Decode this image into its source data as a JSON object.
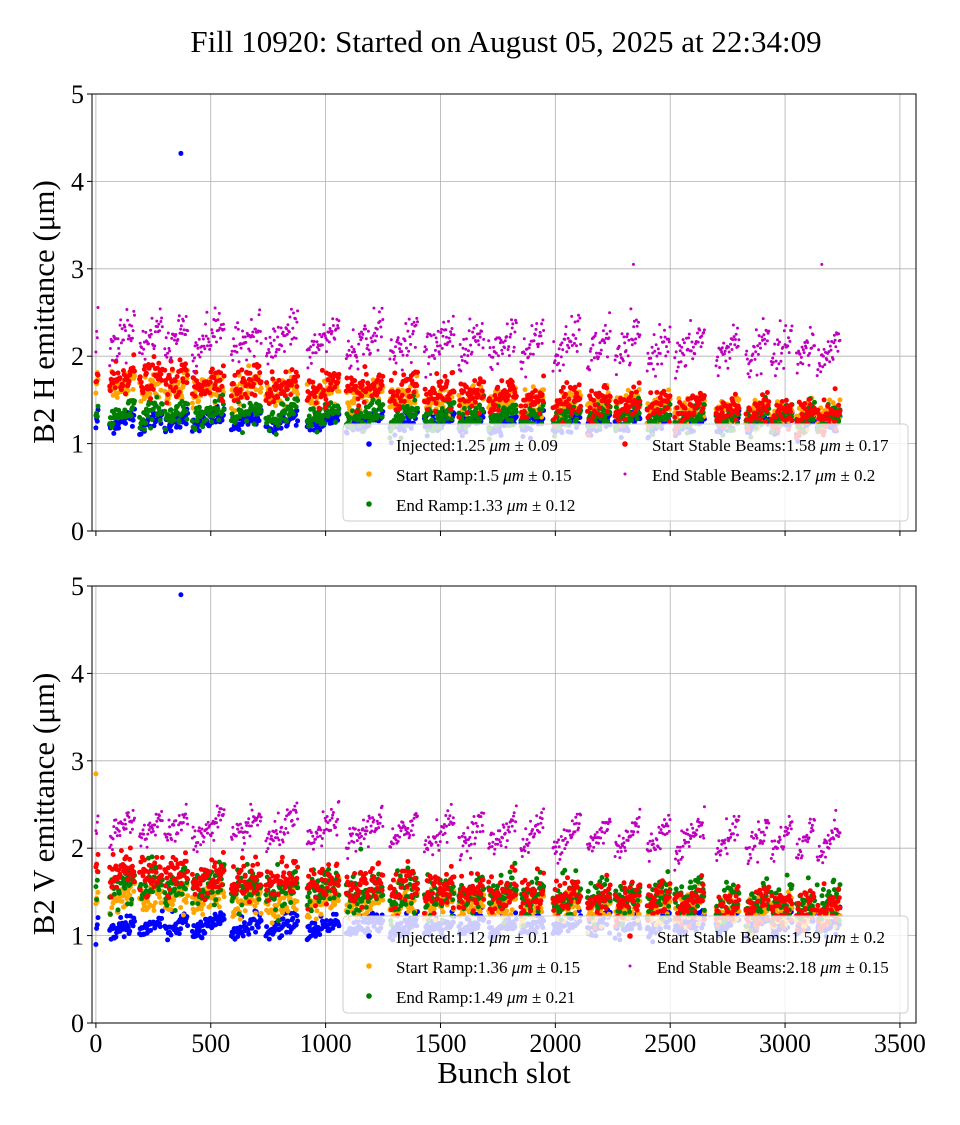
{
  "chart_data": [
    {
      "type": "scatter",
      "title": "Fill 10920: Started on August 05, 2025 at 22:34:09",
      "xlabel": "",
      "ylabel": "B2 H emittance (μm)",
      "xlim": [
        -17,
        3570
      ],
      "ylim": [
        0,
        5
      ],
      "xticks": [
        0,
        500,
        1000,
        1500,
        2000,
        2500,
        3000,
        3500
      ],
      "yticks": [
        0,
        1,
        2,
        3,
        4,
        5
      ],
      "grid": true,
      "legend_placement": "lower-right",
      "bunch_trains": [
        [
          0,
          10
        ],
        [
          60,
          170
        ],
        [
          190,
          290
        ],
        [
          300,
          400
        ],
        [
          420,
          560
        ],
        [
          590,
          720
        ],
        [
          740,
          880
        ],
        [
          920,
          1060
        ],
        [
          1090,
          1250
        ],
        [
          1280,
          1400
        ],
        [
          1430,
          1560
        ],
        [
          1580,
          1690
        ],
        [
          1710,
          1830
        ],
        [
          1850,
          1950
        ],
        [
          1990,
          2110
        ],
        [
          2140,
          2240
        ],
        [
          2260,
          2370
        ],
        [
          2400,
          2500
        ],
        [
          2520,
          2650
        ],
        [
          2700,
          2800
        ],
        [
          2830,
          2930
        ],
        [
          2940,
          3030
        ],
        [
          3050,
          3130
        ],
        [
          3140,
          3240
        ]
      ],
      "series": [
        {
          "name": "Injected",
          "mean": "1.25",
          "std": "0.09",
          "color": "#0000ff",
          "trend": [
            1.27,
            1.22
          ],
          "outliers": [
            [
              370,
              4.32
            ]
          ]
        },
        {
          "name": "Start Ramp",
          "mean": "1.5",
          "std": "0.15",
          "color": "#ffa500",
          "trend": [
            1.7,
            1.3
          ],
          "outliers": []
        },
        {
          "name": "End Ramp",
          "mean": "1.33",
          "std": "0.12",
          "color": "#008000",
          "trend": [
            1.36,
            1.28
          ],
          "outliers": []
        },
        {
          "name": "Start Stable Beams",
          "mean": "1.58",
          "std": "0.17",
          "color": "#ff0000",
          "trend": [
            1.78,
            1.32
          ],
          "outliers": []
        },
        {
          "name": "End Stable Beams",
          "mean": "2.17",
          "std": "0.2",
          "color": "#bf00bf",
          "trend": [
            2.25,
            2.05
          ],
          "outliers": [
            [
              2340,
              3.05
            ],
            [
              3160,
              3.05
            ]
          ]
        }
      ]
    },
    {
      "type": "scatter",
      "xlabel": "Bunch slot",
      "ylabel": "B2 V emittance (μm)",
      "xlim": [
        -17,
        3570
      ],
      "ylim": [
        0,
        5
      ],
      "xticks": [
        0,
        500,
        1000,
        1500,
        2000,
        2500,
        3000,
        3500
      ],
      "yticks": [
        0,
        1,
        2,
        3,
        4,
        5
      ],
      "grid": true,
      "legend_placement": "lower-right",
      "series": [
        {
          "name": "Injected",
          "mean": "1.12",
          "std": "0.1",
          "color": "#0000ff",
          "trend": [
            1.1,
            1.14
          ],
          "outliers": [
            [
              370,
              4.9
            ]
          ]
        },
        {
          "name": "Start Ramp",
          "mean": "1.36",
          "std": "0.15",
          "color": "#ffa500",
          "trend": [
            1.45,
            1.25
          ],
          "outliers": [
            [
              0,
              2.85
            ]
          ]
        },
        {
          "name": "End Ramp",
          "mean": "1.49",
          "std": "0.21",
          "color": "#008000",
          "trend": [
            1.6,
            1.35
          ],
          "outliers": []
        },
        {
          "name": "Start Stable Beams",
          "mean": "1.59",
          "std": "0.2",
          "color": "#ff0000",
          "trend": [
            1.75,
            1.28
          ],
          "outliers": []
        },
        {
          "name": "End Stable Beams",
          "mean": "2.18",
          "std": "0.15",
          "color": "#bf00bf",
          "trend": [
            2.25,
            2.1
          ],
          "outliers": []
        }
      ]
    }
  ]
}
